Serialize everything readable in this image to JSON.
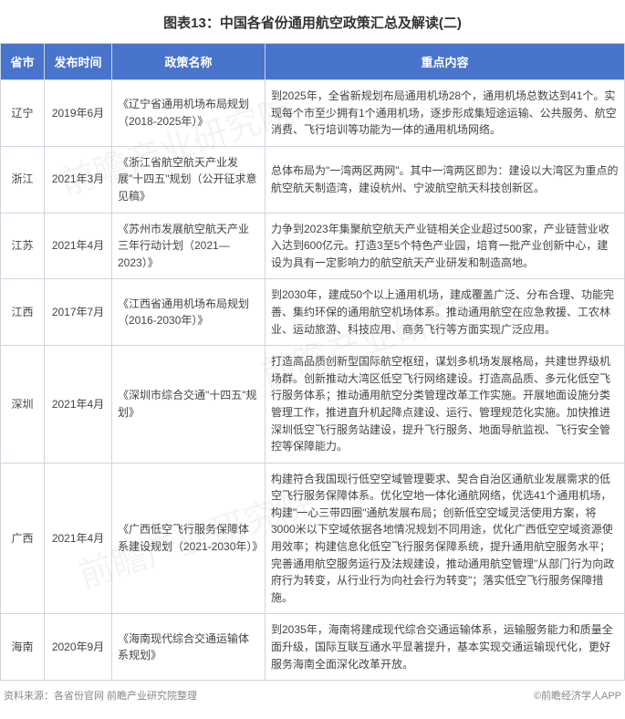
{
  "title": "图表13：中国各省份通用航空政策汇总及解读(二)",
  "columns": [
    "省市",
    "发布时间",
    "政策名称",
    "重点内容"
  ],
  "header_bg": "#4874cb",
  "header_fg": "#ffffff",
  "border_color": "#cfd5df",
  "rows": [
    {
      "province": "辽宁",
      "date": "2019年6月",
      "policy": "《辽宁省通用机场布局规划（2018-2025年）》",
      "content": "到2025年，全省新规划布局通用机场28个，通用机场总数达到41个。实现每个市至少拥有1个通用机场，逐步形成集短途运输、公共服务、航空消费、飞行培训等功能为一体的通用机场网络。"
    },
    {
      "province": "浙江",
      "date": "2021年3月",
      "policy": "《浙江省航空航天产业发展\"十四五\"规划（公开征求意见稿》",
      "content": "总体布局为\"一湾两区两网\"。其中一湾两区即为：建设以大湾区为重点的航空航天制造湾，建设杭州、宁波航空航天科技创新区。"
    },
    {
      "province": "江苏",
      "date": "2021年4月",
      "policy": "《苏州市发展航空航天产业三年行动计划（2021—2023）》",
      "content": "力争到2023年集聚航空航天产业链相关企业超过500家，产业链营业收入达到600亿元。打造3至5个特色产业园，培育一批产业创新中心，建设为具有一定影响力的航空航天产业研发和制造高地。"
    },
    {
      "province": "江西",
      "date": "2017年7月",
      "policy": "《江西省通用机场布局规划（2016-2030年）》",
      "content": "到2030年，建成50个以上通用机场，建成覆盖广泛、分布合理、功能完善、集约环保的通用航空机场体系。推动通用航空在应急救援、工农林业、运动旅游、科技应用、商务飞行等方面实现广泛应用。"
    },
    {
      "province": "深圳",
      "date": "2021年4月",
      "policy": "《深圳市综合交通\"十四五\"规划》",
      "content": "打造高品质创新型国际航空枢纽，谋划多机场发展格局，共建世界级机场群。创新推动大湾区低空飞行网络建设。打造高品质、多元化低空飞行服务体系；推动通用航空分类管理改革工作实施。开展地面设施分类管理工作，推进直升机起降点建设、运行、管理规范化实施。加快推进深圳低空飞行服务站建设，提升飞行服务、地面导航监视、飞行安全管控等保障能力。"
    },
    {
      "province": "广西",
      "date": "2021年4月",
      "policy": "《广西低空飞行服务保障体系建设规划（2021-2030年）》",
      "content": "构建符合我国现行低空空域管理要求、契合自治区通航业发展需求的低空飞行服务保障体系。优化空地一体化通航网络，优选41个通用机场，构建\"一心三带四圈\"通航发展布局；创新低空空域灵活使用方案，将3000米以下空域依据各地情况规划不同用途，优化广西低空空域资源使用效率；构建信息化低空飞行服务保障系统，提升通用航空服务水平；完善通用航空服务运行及法规建设，推动通用航空管理\"从部门行为向政府行为转变，从行业行为向社会行为转变\"；落实低空飞行服务保障措施。"
    },
    {
      "province": "海南",
      "date": "2020年9月",
      "policy": "《海南现代综合交通运输体系规划》",
      "content": "到2035年，海南将建成现代综合交通运输体系，运输服务能力和质量全面升级，国际互联互通水平显著提升，基本实现交通运输现代化，更好服务海南全面深化改革开放。"
    }
  ],
  "source_left": "资料来源：各省份官网 前瞻产业研究院整理",
  "source_right": "©前瞻经济学人APP",
  "watermark_text": "前瞻产业研究院"
}
